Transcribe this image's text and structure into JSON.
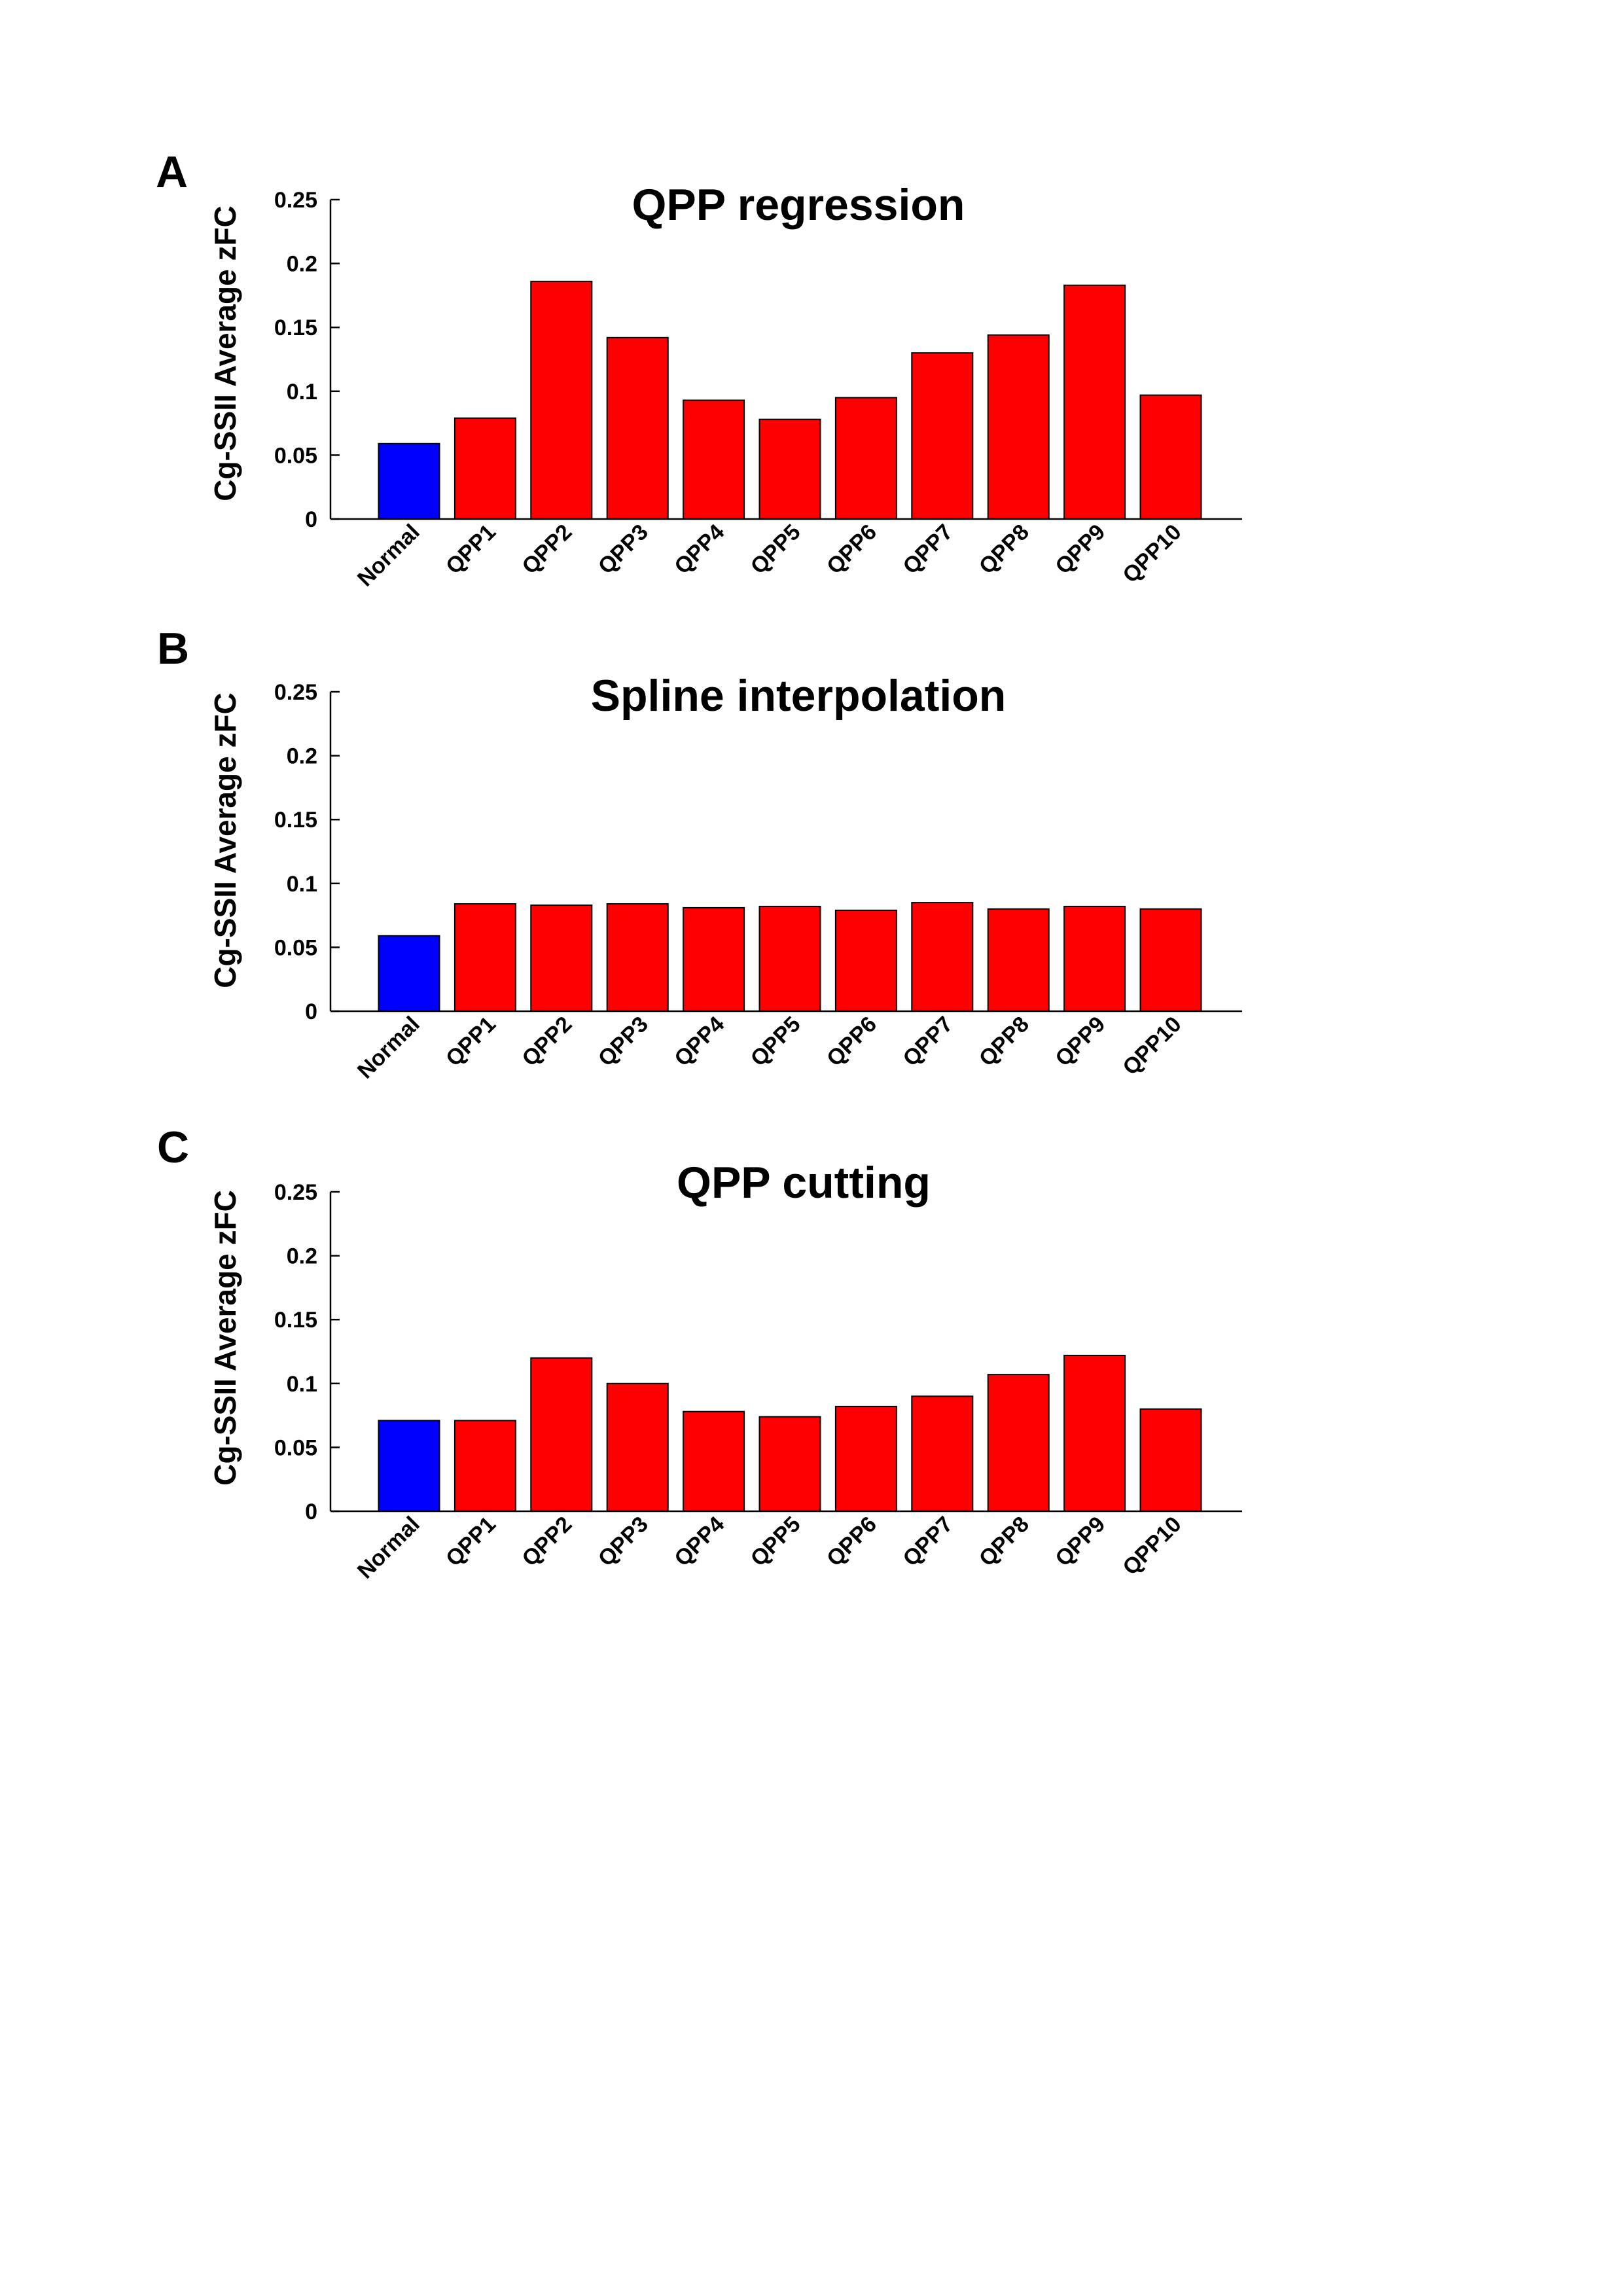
{
  "chart_data": [
    {
      "type": "bar",
      "panel_label": "A",
      "title": "QPP regression",
      "xlabel": "",
      "ylabel": "Cg-SSII Average zFC",
      "ylim": [
        0,
        0.25
      ],
      "yticks": [
        0,
        0.05,
        0.1,
        0.15,
        0.2,
        0.25
      ],
      "ytick_labels": [
        "0",
        "0.05",
        "0.1",
        "0.15",
        "0.2",
        "0.25"
      ],
      "categories": [
        "Normal",
        "QPP1",
        "QPP2",
        "QPP3",
        "QPP4",
        "QPP5",
        "QPP6",
        "QPP7",
        "QPP8",
        "QPP9",
        "QPP10"
      ],
      "values": [
        0.059,
        0.079,
        0.186,
        0.142,
        0.093,
        0.078,
        0.095,
        0.13,
        0.144,
        0.183,
        0.097
      ],
      "colors": [
        "#0000ff",
        "#ff0000",
        "#ff0000",
        "#ff0000",
        "#ff0000",
        "#ff0000",
        "#ff0000",
        "#ff0000",
        "#ff0000",
        "#ff0000",
        "#ff0000"
      ]
    },
    {
      "type": "bar",
      "panel_label": "B",
      "title": "Spline interpolation",
      "xlabel": "",
      "ylabel": "Cg-SSII Average zFC",
      "ylim": [
        0,
        0.25
      ],
      "yticks": [
        0,
        0.05,
        0.1,
        0.15,
        0.2,
        0.25
      ],
      "ytick_labels": [
        "0",
        "0.05",
        "0.1",
        "0.15",
        "0.2",
        "0.25"
      ],
      "categories": [
        "Normal",
        "QPP1",
        "QPP2",
        "QPP3",
        "QPP4",
        "QPP5",
        "QPP6",
        "QPP7",
        "QPP8",
        "QPP9",
        "QPP10"
      ],
      "values": [
        0.059,
        0.084,
        0.083,
        0.084,
        0.081,
        0.082,
        0.079,
        0.085,
        0.08,
        0.082,
        0.08
      ],
      "colors": [
        "#0000ff",
        "#ff0000",
        "#ff0000",
        "#ff0000",
        "#ff0000",
        "#ff0000",
        "#ff0000",
        "#ff0000",
        "#ff0000",
        "#ff0000",
        "#ff0000"
      ]
    },
    {
      "type": "bar",
      "panel_label": "C",
      "title": "QPP cutting",
      "xlabel": "",
      "ylabel": "Cg-SSII Average zFC",
      "ylim": [
        0,
        0.25
      ],
      "yticks": [
        0,
        0.05,
        0.1,
        0.15,
        0.2,
        0.25
      ],
      "ytick_labels": [
        "0",
        "0.05",
        "0.1",
        "0.15",
        "0.2",
        "0.25"
      ],
      "categories": [
        "Normal",
        "QPP1",
        "QPP2",
        "QPP3",
        "QPP4",
        "QPP5",
        "QPP6",
        "QPP7",
        "QPP8",
        "QPP9",
        "QPP10"
      ],
      "values": [
        0.071,
        0.071,
        0.12,
        0.1,
        0.078,
        0.074,
        0.082,
        0.09,
        0.107,
        0.122,
        0.08
      ],
      "colors": [
        "#0000ff",
        "#ff0000",
        "#ff0000",
        "#ff0000",
        "#ff0000",
        "#ff0000",
        "#ff0000",
        "#ff0000",
        "#ff0000",
        "#ff0000",
        "#ff0000"
      ]
    }
  ]
}
